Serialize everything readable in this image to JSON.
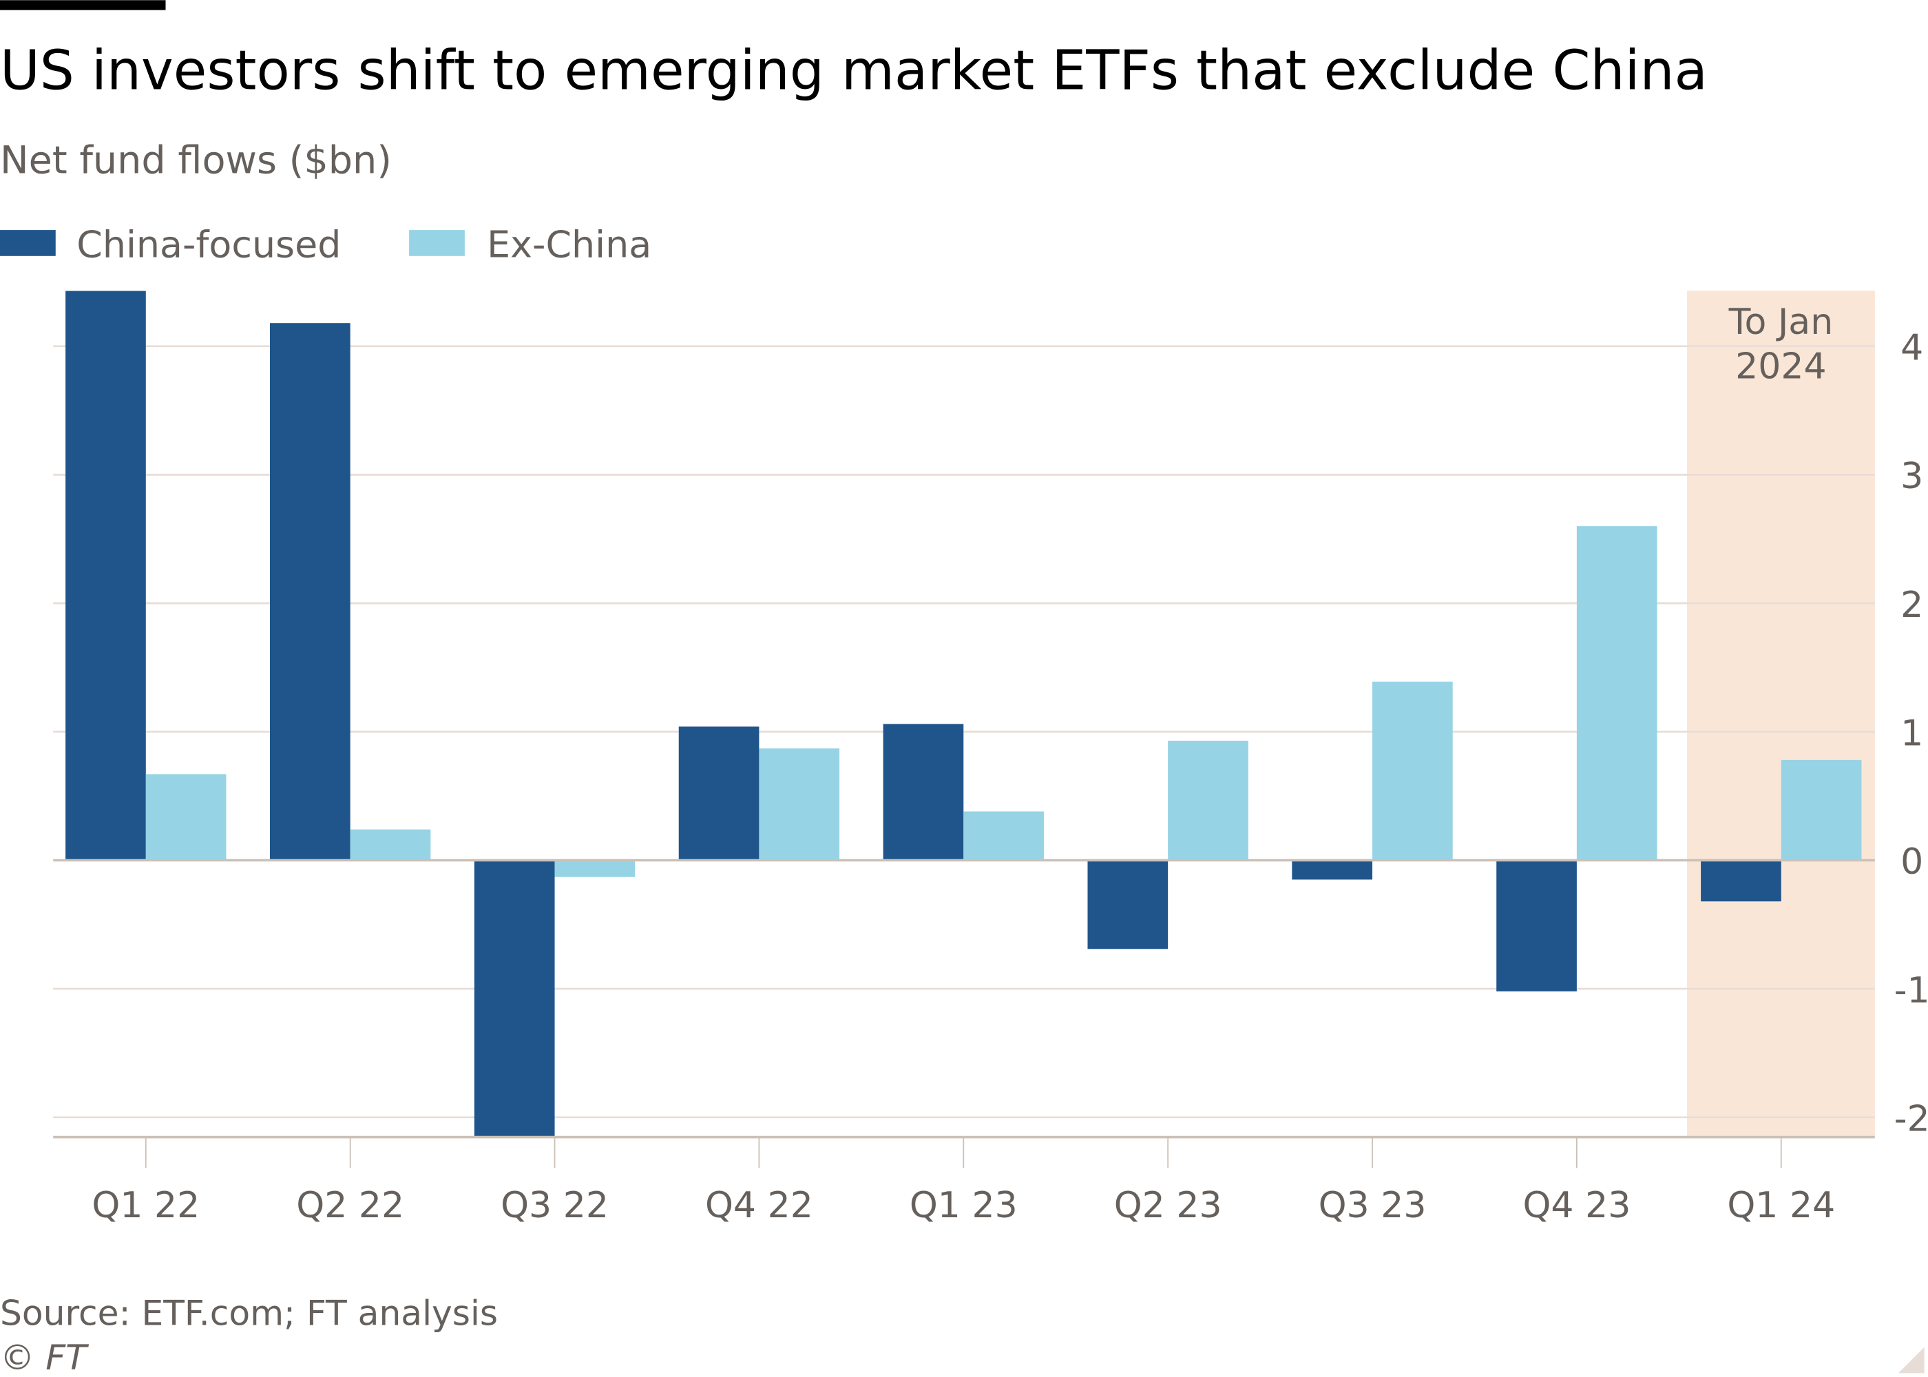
{
  "title": "US investors shift to emerging market ETFs that exclude China",
  "subtitle": "Net fund flows ($bn)",
  "source": "Source: ETF.com; FT analysis",
  "copyright": "© FT",
  "colors": {
    "china": "#1f558b",
    "exchina": "#96d3e5",
    "highlight": "#fae6d7",
    "grid": "#e8ddd6",
    "text": "#66605c"
  },
  "chart_data": {
    "type": "bar",
    "title": "US investors shift to emerging market ETFs that exclude China",
    "subtitle": "Net fund flows ($bn)",
    "categories": [
      "Q1 22",
      "Q2 22",
      "Q3 22",
      "Q4 22",
      "Q1 23",
      "Q2 23",
      "Q3 23",
      "Q4 23",
      "Q1 24"
    ],
    "series": [
      {
        "name": "China-focused",
        "color": "#1f558b",
        "values": [
          4.43,
          4.18,
          -2.15,
          1.04,
          1.06,
          -0.69,
          -0.15,
          -1.02,
          -0.32
        ]
      },
      {
        "name": "Ex-China",
        "color": "#96d3e5",
        "values": [
          0.67,
          0.24,
          -0.13,
          0.87,
          0.38,
          0.93,
          1.39,
          2.6,
          0.78
        ]
      }
    ],
    "ylim": [
      -2.15,
      4.43
    ],
    "yticks": [
      "4",
      "3",
      "2",
      "1",
      "0",
      "-1",
      "-2"
    ],
    "ytick_values": [
      4,
      3,
      2,
      1,
      0,
      -1,
      -2
    ],
    "y_axis_side": "right",
    "grid": true,
    "legend": "top-left",
    "annotation": {
      "category": "Q1 24",
      "line1": "To Jan",
      "line2": "2024"
    }
  }
}
